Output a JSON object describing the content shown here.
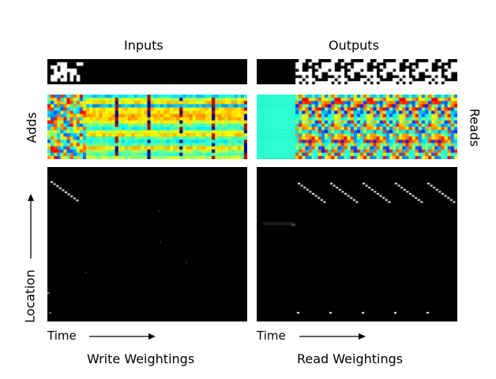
{
  "left_panel": {
    "top_title": "Inputs",
    "side_label": "Adds",
    "bottom_title": "Write Weightings"
  },
  "right_panel": {
    "top_title": "Outputs",
    "side_label": "Reads",
    "bottom_title": "Read Weightings"
  },
  "axes": {
    "time_label": "Time",
    "location_label": "Location"
  },
  "colors": {
    "background": "#ffffff",
    "panel_bg": "#000000",
    "weighting_line": "#ffffff"
  }
}
